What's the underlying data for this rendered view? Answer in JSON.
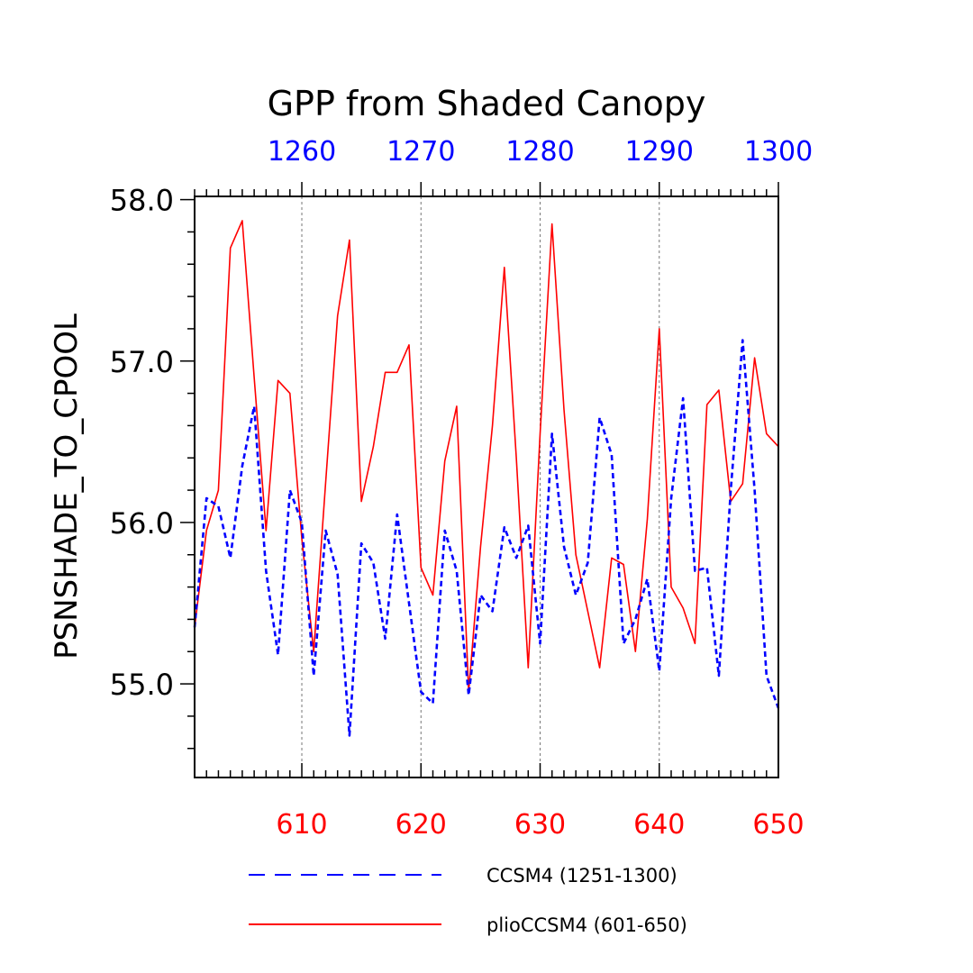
{
  "chart_data": {
    "type": "line",
    "title": "GPP from Shaded Canopy",
    "ylabel": "PSNSHADE_TO_CPOOL",
    "ylim": [
      54.42,
      58.02
    ],
    "y_ticks": [
      55.0,
      56.0,
      57.0,
      58.0
    ],
    "y_tick_labels": [
      "55.0",
      "56.0",
      "57.0",
      "58.0"
    ],
    "x_bottom": {
      "range": [
        601,
        650
      ],
      "ticks": [
        610,
        620,
        630,
        640,
        650
      ],
      "labels": [
        "610",
        "620",
        "630",
        "640",
        "650"
      ],
      "color": "#ff0000"
    },
    "x_top": {
      "range": [
        1251,
        1300
      ],
      "ticks": [
        1260,
        1270,
        1280,
        1290,
        1300
      ],
      "labels": [
        "1260",
        "1270",
        "1280",
        "1290",
        "1300"
      ],
      "color": "#0000ff"
    },
    "grid": "vertical dashed at major x ticks",
    "series": [
      {
        "name": "CCSM4 (1251-1300)",
        "color": "#0000ff",
        "style": "dashed",
        "x": [
          1251,
          1252,
          1253,
          1254,
          1255,
          1256,
          1257,
          1258,
          1259,
          1260,
          1261,
          1262,
          1263,
          1264,
          1265,
          1266,
          1267,
          1268,
          1269,
          1270,
          1271,
          1272,
          1273,
          1274,
          1275,
          1276,
          1277,
          1278,
          1279,
          1280,
          1281,
          1282,
          1283,
          1284,
          1285,
          1286,
          1287,
          1288,
          1289,
          1290,
          1291,
          1292,
          1293,
          1294,
          1295,
          1296,
          1297,
          1298,
          1299,
          1300
        ],
        "values": [
          55.35,
          56.15,
          56.1,
          55.78,
          56.35,
          56.72,
          55.7,
          55.18,
          56.2,
          56.0,
          55.05,
          55.95,
          55.68,
          54.68,
          55.87,
          55.75,
          55.28,
          56.05,
          55.5,
          54.95,
          54.88,
          55.95,
          55.7,
          54.93,
          55.55,
          55.45,
          55.97,
          55.78,
          55.98,
          55.25,
          56.55,
          55.85,
          55.55,
          55.75,
          56.65,
          56.42,
          55.25,
          55.4,
          55.65,
          55.08,
          56.15,
          56.77,
          55.7,
          55.72,
          55.05,
          56.2,
          57.13,
          56.2,
          55.05,
          54.85
        ]
      },
      {
        "name": "plioCCSM4 (601-650)",
        "color": "#ff0000",
        "style": "solid",
        "x": [
          601,
          602,
          603,
          604,
          605,
          606,
          607,
          608,
          609,
          610,
          611,
          612,
          613,
          614,
          615,
          616,
          617,
          618,
          619,
          620,
          621,
          622,
          623,
          624,
          625,
          626,
          627,
          628,
          629,
          630,
          631,
          632,
          633,
          634,
          635,
          636,
          637,
          638,
          639,
          640,
          641,
          642,
          643,
          644,
          645,
          646,
          647,
          648,
          649,
          650
        ],
        "values": [
          55.35,
          55.95,
          56.2,
          57.7,
          57.87,
          56.9,
          55.95,
          56.88,
          56.8,
          55.9,
          55.2,
          56.25,
          57.28,
          57.75,
          56.13,
          56.47,
          56.93,
          56.93,
          57.1,
          55.72,
          55.55,
          56.38,
          56.72,
          54.95,
          55.85,
          56.6,
          57.58,
          56.4,
          55.1,
          56.55,
          57.85,
          56.7,
          55.8,
          55.45,
          55.1,
          55.78,
          55.74,
          55.2,
          56.02,
          57.2,
          55.6,
          55.47,
          55.25,
          56.73,
          56.82,
          56.13,
          56.24,
          57.02,
          56.55,
          56.47
        ]
      }
    ]
  },
  "legend": [
    {
      "label": "CCSM4 (1251-1300)",
      "color": "#0000ff",
      "style": "dashed"
    },
    {
      "label": "plioCCSM4 (601-650)",
      "color": "#ff0000",
      "style": "solid"
    }
  ]
}
